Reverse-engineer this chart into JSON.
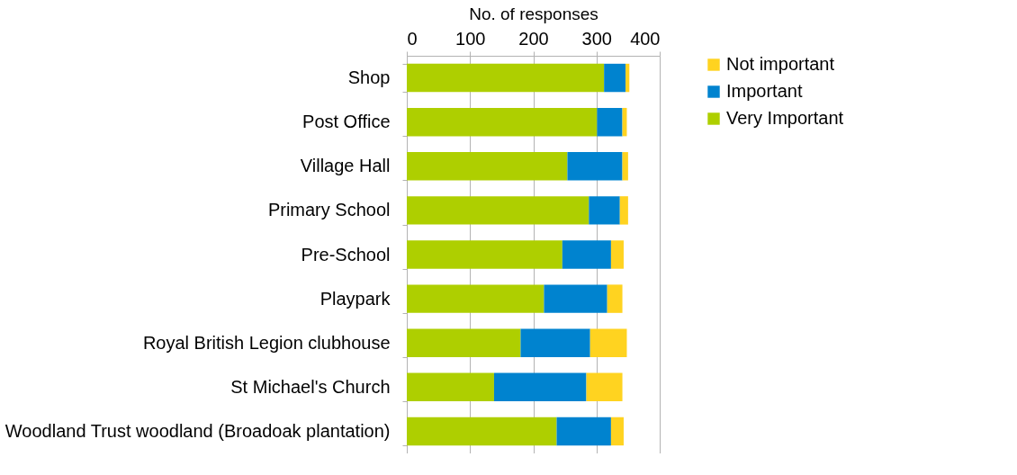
{
  "chart_data": {
    "type": "bar",
    "orientation": "horizontal",
    "stacked": true,
    "xlabel": "No. of responses",
    "categories": [
      "Shop",
      "Post Office",
      "Village Hall",
      "Primary School",
      "Pre-School",
      "Playpark",
      "Royal British Legion clubhouse",
      "St Michael's Church",
      "Woodland Trust woodland (Broadoak plantation)"
    ],
    "series": [
      {
        "name": "Very Important",
        "color": "#aecf00",
        "values": [
          312,
          301,
          254,
          288,
          246,
          217,
          180,
          138,
          237
        ]
      },
      {
        "name": "Important",
        "color": "#0083cf",
        "values": [
          34,
          40,
          87,
          49,
          77,
          100,
          110,
          146,
          86
        ]
      },
      {
        "name": "Not important",
        "color": "#ffd320",
        "values": [
          6,
          7,
          9,
          13,
          20,
          24,
          58,
          57,
          20
        ]
      }
    ],
    "xlim": [
      0,
      400
    ],
    "xticks": [
      0,
      100,
      200,
      300,
      400
    ],
    "grid": "x",
    "legend": "right"
  }
}
